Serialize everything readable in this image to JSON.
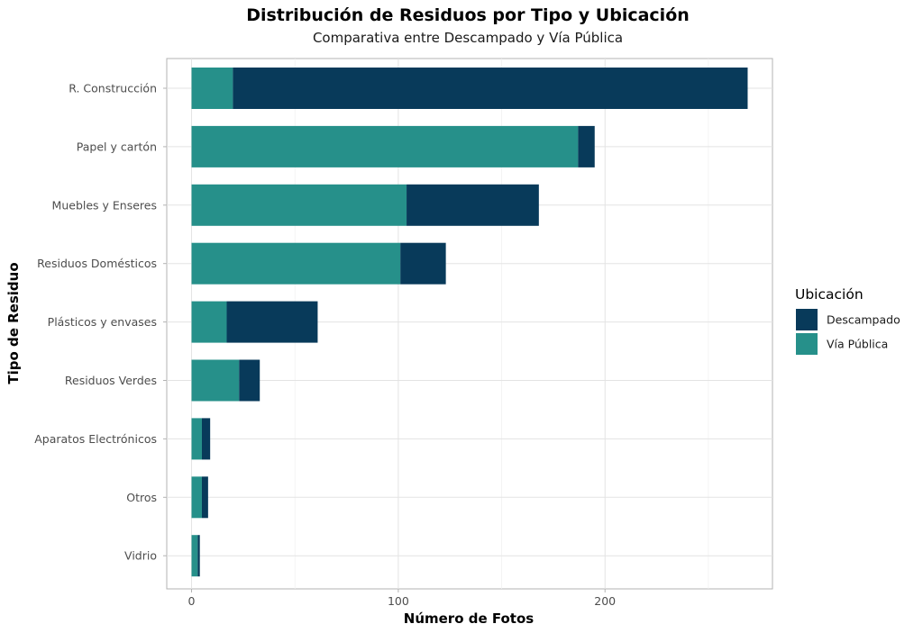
{
  "chart_data": {
    "type": "bar",
    "orientation": "horizontal",
    "stacked": true,
    "title": "Distribución de Residuos por Tipo y Ubicación",
    "subtitle": "Comparativa entre Descampado y Vía Pública",
    "xlabel": "Número de Fotos",
    "ylabel": "Tipo de Residuo",
    "xlim": [
      -12,
      281
    ],
    "xticks": [
      0,
      100,
      200
    ],
    "grid": true,
    "legend": {
      "title": "Ubicación",
      "position": "right",
      "entries": [
        "Descampado",
        "Vía Pública"
      ]
    },
    "categories": [
      "R. Construcción",
      "Papel y cartón",
      "Muebles y Enseres",
      "Residuos Domésticos",
      "Plásticos y envases",
      "Residuos Verdes",
      "Aparatos Electrónicos",
      "Otros",
      "Vidrio"
    ],
    "series": [
      {
        "name": "Vía Pública",
        "color": "#26908a",
        "values": [
          20,
          187,
          104,
          101,
          17,
          23,
          5,
          5,
          3
        ]
      },
      {
        "name": "Descampado",
        "color": "#083a5a",
        "values": [
          249,
          8,
          64,
          22,
          44,
          10,
          4,
          3,
          1
        ]
      }
    ]
  }
}
